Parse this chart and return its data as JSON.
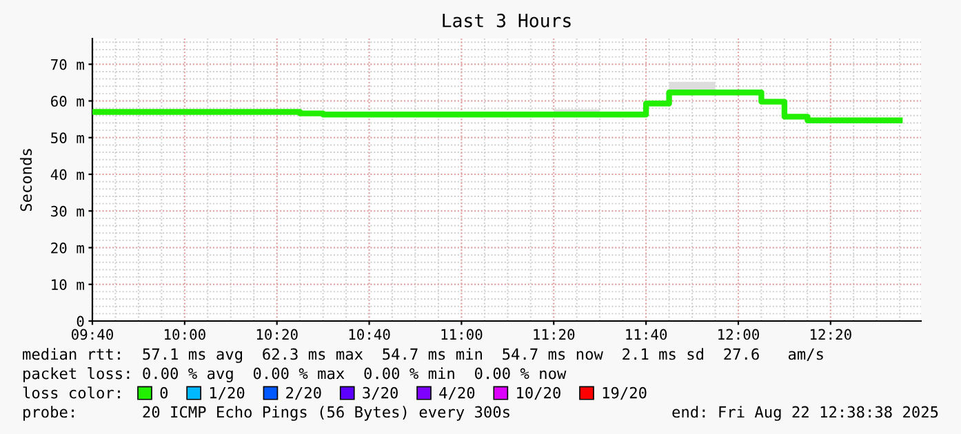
{
  "chart_data": {
    "type": "step",
    "title": "Last 3 Hours",
    "ylabel": "Seconds",
    "x": [
      9.6667,
      10.4167,
      10.5,
      11.3333,
      11.5,
      11.6667,
      11.75,
      11.9167,
      12.0833,
      12.1667,
      12.25,
      12.5833
    ],
    "series": [
      {
        "name": "0",
        "color": "#22ee00",
        "values": [
          57.0,
          56.6,
          56.3,
          56.3,
          56.3,
          59.3,
          62.3,
          62.3,
          59.8,
          55.7,
          54.7,
          54.7
        ],
        "lower": [
          null,
          null,
          null,
          56.3,
          56.3,
          null,
          62.3,
          62.3,
          null,
          null,
          null,
          null
        ],
        "upper": [
          null,
          null,
          null,
          57.7,
          57.7,
          null,
          65.2,
          65.2,
          null,
          null,
          null,
          null
        ]
      },
      {
        "name": "1/20",
        "color": "#00b8ff",
        "values": [
          null,
          null,
          null,
          null,
          null,
          null,
          null,
          null,
          null,
          null,
          null,
          null
        ]
      },
      {
        "name": "2/20",
        "color": "#0059ff",
        "values": [
          null,
          null,
          null,
          null,
          null,
          null,
          null,
          null,
          null,
          null,
          null,
          null
        ]
      },
      {
        "name": "3/20",
        "color": "#5e00ff",
        "values": [
          null,
          null,
          null,
          null,
          null,
          null,
          null,
          null,
          null,
          null,
          null,
          null
        ]
      },
      {
        "name": "4/20",
        "color": "#7e00ff",
        "values": [
          null,
          null,
          null,
          null,
          null,
          null,
          null,
          null,
          null,
          null,
          null,
          null
        ]
      },
      {
        "name": "10/20",
        "color": "#dd00ff",
        "values": [
          null,
          null,
          null,
          null,
          null,
          null,
          null,
          null,
          null,
          null,
          null,
          null
        ]
      },
      {
        "name": "19/20",
        "color": "#ff0000",
        "values": [
          null,
          null,
          null,
          null,
          null,
          null,
          null,
          null,
          null,
          null,
          null,
          null
        ]
      }
    ],
    "legend_title": "loss color:",
    "legend": "bottom",
    "xlim": [
      9.6667,
      12.66
    ],
    "xticks": [
      {
        "value": 9.6667,
        "label": "09:40"
      },
      {
        "value": 10.0,
        "label": "10:00"
      },
      {
        "value": 10.3333,
        "label": "10:20"
      },
      {
        "value": 10.6667,
        "label": "10:40"
      },
      {
        "value": 11.0,
        "label": "11:00"
      },
      {
        "value": 11.3333,
        "label": "11:20"
      },
      {
        "value": 11.6667,
        "label": "11:40"
      },
      {
        "value": 12.0,
        "label": "12:00"
      },
      {
        "value": 12.3333,
        "label": "12:20"
      }
    ],
    "ylim": [
      0,
      77
    ],
    "yticks": [
      0,
      {
        "value": 10,
        "label": "10 m"
      },
      {
        "value": 20,
        "label": "20 m"
      },
      {
        "value": 30,
        "label": "30 m"
      },
      {
        "value": 40,
        "label": "40 m"
      },
      {
        "value": 50,
        "label": "50 m"
      },
      {
        "value": 60,
        "label": "60 m"
      },
      {
        "value": 70,
        "label": "70 m"
      }
    ],
    "grid": true,
    "annotations": [
      "median rtt:  57.1 ms avg  62.3 ms max  54.7 ms min  54.7 ms now  2.1 ms sd  27.6   am/s",
      "packet loss: 0.00 % avg  0.00 % max  0.00 % min  0.00 % now",
      "probe:       20 ICMP Echo Pings (56 Bytes) every 300s",
      "end: Fri Aug 22 12:38:38 2025"
    ]
  }
}
